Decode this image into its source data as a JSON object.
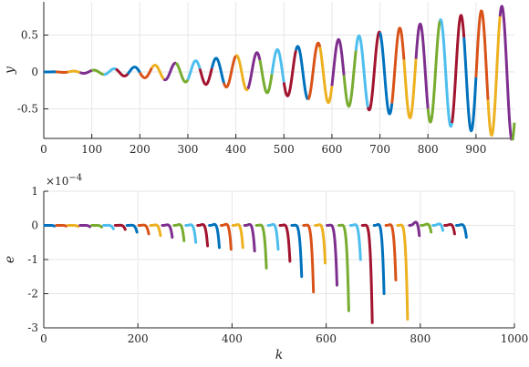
{
  "palette": [
    "#0072BD",
    "#D95319",
    "#EDB120",
    "#7E2F8E",
    "#77AC30",
    "#4DBEEE",
    "#A2142F"
  ],
  "chart_data": [
    {
      "type": "line",
      "xlabel": "",
      "ylabel": "y",
      "xlim": [
        0,
        980
      ],
      "ylim": [
        -0.9,
        0.95
      ],
      "xticks": [
        0,
        100,
        200,
        300,
        400,
        500,
        600,
        700,
        800,
        900
      ],
      "yticks": [
        -0.5,
        0,
        0.5
      ],
      "xtick_labels": [
        "0",
        "100",
        "200",
        "300",
        "400",
        "500",
        "600",
        "700",
        "800",
        "900"
      ],
      "ytick_labels": [
        "-0.5",
        "0",
        "0.5"
      ],
      "grid": true,
      "segment_length": 25,
      "series": {
        "period": 42.5,
        "amplitude_end": 0.93,
        "x_end": 980,
        "points": [
          [
            0,
            0
          ],
          [
            50,
            0.02
          ],
          [
            100,
            -0.03
          ],
          [
            150,
            0.06
          ],
          [
            200,
            -0.08
          ],
          [
            250,
            0.11
          ],
          [
            300,
            -0.14
          ],
          [
            350,
            0.18
          ],
          [
            400,
            -0.22
          ],
          [
            450,
            0.26
          ],
          [
            500,
            -0.3
          ],
          [
            550,
            0.35
          ],
          [
            600,
            -0.4
          ],
          [
            650,
            0.45
          ],
          [
            700,
            -0.5
          ],
          [
            750,
            0.56
          ],
          [
            800,
            -0.62
          ],
          [
            850,
            0.7
          ],
          [
            900,
            -0.78
          ],
          [
            950,
            0.93
          ],
          [
            980,
            -0.7
          ]
        ]
      }
    },
    {
      "type": "line",
      "xlabel": "k",
      "ylabel": "e",
      "exponent_label": "×10",
      "exponent_power": "−4",
      "xlim": [
        0,
        1000
      ],
      "ylim": [
        -3,
        1
      ],
      "xticks": [
        0,
        200,
        400,
        600,
        800,
        1000
      ],
      "yticks": [
        -3,
        -2,
        -1,
        0,
        1
      ],
      "xtick_labels": [
        "0",
        "200",
        "400",
        "600",
        "800",
        "1000"
      ],
      "ytick_labels": [
        "-3",
        "-2",
        "-1",
        "0",
        "1"
      ],
      "grid": true,
      "segment_length": 25,
      "segments": [
        {
          "end_min": -0.02,
          "end_max": 0.01
        },
        {
          "end_min": -0.02,
          "end_max": 0.01
        },
        {
          "end_min": -0.03,
          "end_max": 0.01
        },
        {
          "end_min": -0.04,
          "end_max": 0.02
        },
        {
          "end_min": -0.05,
          "end_max": 0.03
        },
        {
          "end_min": -0.1,
          "end_max": 0.05
        },
        {
          "end_min": -0.12,
          "end_max": 0.08
        },
        {
          "end_min": -0.2,
          "end_max": 0.1
        },
        {
          "end_min": -0.25,
          "end_max": 0.15
        },
        {
          "end_min": -0.3,
          "end_max": 0.2
        },
        {
          "end_min": -0.35,
          "end_max": 0.25
        },
        {
          "end_min": -0.45,
          "end_max": 0.35
        },
        {
          "end_min": -0.5,
          "end_max": 0.3
        },
        {
          "end_min": -0.6,
          "end_max": 0.4
        },
        {
          "end_min": -0.65,
          "end_max": 0.45
        },
        {
          "end_min": -0.7,
          "end_max": 0.5
        },
        {
          "end_min": -0.65,
          "end_max": 0.4
        },
        {
          "end_min": -0.75,
          "end_max": 0.45
        },
        {
          "end_min": -1.25,
          "end_max": 0.35
        },
        {
          "end_min": -0.7,
          "end_max": 0.45
        },
        {
          "end_min": -1.05,
          "end_max": 0.35
        },
        {
          "end_min": -1.5,
          "end_max": 0.3
        },
        {
          "end_min": -1.95,
          "end_max": 0.4
        },
        {
          "end_min": -1.1,
          "end_max": 0.45
        },
        {
          "end_min": -1.75,
          "end_max": 0.35
        },
        {
          "end_min": -2.5,
          "end_max": 0.4
        },
        {
          "end_min": -1.0,
          "end_max": 0.45
        },
        {
          "end_min": -2.85,
          "end_max": 0.4
        },
        {
          "end_min": -2.0,
          "end_max": 0.7
        },
        {
          "end_min": -1.6,
          "end_max": 0.55
        },
        {
          "end_min": -2.75,
          "end_max": 0.5
        },
        {
          "end_min": -0.3,
          "end_max": 0.75
        },
        {
          "end_min": -0.2,
          "end_max": 0.35
        },
        {
          "end_min": -0.15,
          "end_max": 0.35
        },
        {
          "end_min": -0.25,
          "end_max": 0.3
        },
        {
          "end_min": -0.35,
          "end_max": 0.3
        }
      ]
    }
  ]
}
